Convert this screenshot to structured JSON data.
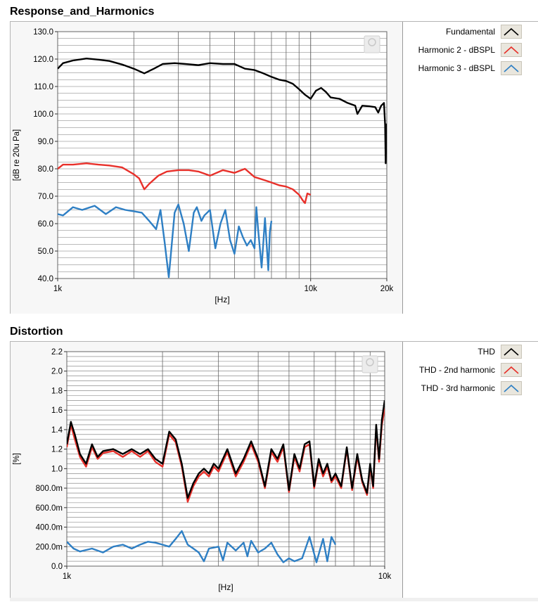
{
  "chart_data": [
    {
      "type": "line",
      "title": "Response_and_Harmonics",
      "xlabel": "[Hz]",
      "ylabel": "[dB re 20u Pa]",
      "xscale": "log",
      "xlim": [
        1000,
        20000
      ],
      "ylim": [
        40,
        130
      ],
      "xticks": [
        1000,
        10000,
        20000
      ],
      "xtick_labels": [
        "1k",
        "10k",
        "20k"
      ],
      "yticks": [
        130,
        120,
        110,
        100,
        90,
        80,
        70,
        60,
        50,
        40
      ],
      "ytick_labels": [
        "130.0",
        "120.0",
        "110.0",
        "100.0",
        "90.0",
        "80.0",
        "70.0",
        "60.0",
        "50.0",
        "40.0"
      ],
      "grid": true,
      "legend_position": "right",
      "series": [
        {
          "name": "Fundamental",
          "color": "#000000",
          "x": [
            1000,
            1050,
            1150,
            1300,
            1450,
            1600,
            1800,
            2000,
            2200,
            2400,
            2600,
            2900,
            3200,
            3600,
            4000,
            4500,
            5000,
            5500,
            6000,
            6500,
            7000,
            7500,
            8000,
            8500,
            9000,
            9500,
            10000,
            10500,
            11000,
            11500,
            12000,
            13000,
            14000,
            15000,
            15300,
            16000,
            17000,
            18000,
            18500,
            19000,
            19500,
            19700,
            19800,
            20000
          ],
          "y": [
            116.5,
            118.5,
            119.5,
            120.2,
            119.8,
            119.3,
            118.0,
            116.5,
            114.8,
            116.5,
            118.2,
            118.5,
            118.2,
            117.8,
            118.5,
            118.2,
            118.2,
            116.5,
            116.0,
            114.8,
            113.5,
            112.5,
            112.0,
            111.0,
            109.0,
            107.0,
            105.5,
            108.5,
            109.5,
            108.0,
            106.0,
            105.5,
            104.0,
            103.0,
            100.0,
            103.0,
            102.8,
            102.5,
            100.5,
            103.0,
            104.0,
            96.0,
            82.0,
            96.5
          ]
        },
        {
          "name": "Harmonic 2 - dBSPL",
          "color": "#e8302a",
          "x": [
            1000,
            1050,
            1150,
            1300,
            1450,
            1600,
            1800,
            2000,
            2100,
            2200,
            2300,
            2500,
            2700,
            3000,
            3300,
            3600,
            4000,
            4500,
            5000,
            5500,
            6000,
            6500,
            7000,
            7500,
            8000,
            8500,
            9000,
            9300,
            9500,
            9700,
            10000
          ],
          "y": [
            80.0,
            81.5,
            81.5,
            82.0,
            81.5,
            81.2,
            80.5,
            78.0,
            76.5,
            72.5,
            74.5,
            77.5,
            79.0,
            79.5,
            79.5,
            79.0,
            77.5,
            79.5,
            78.5,
            80.0,
            77.0,
            76.0,
            75.0,
            74.0,
            73.5,
            72.5,
            70.5,
            68.5,
            67.5,
            71.0,
            70.5
          ]
        },
        {
          "name": "Harmonic 3 - dBSPL",
          "color": "#2e7fc4",
          "x": [
            1000,
            1050,
            1150,
            1250,
            1400,
            1550,
            1700,
            1850,
            2000,
            2150,
            2300,
            2450,
            2550,
            2650,
            2750,
            2900,
            3000,
            3150,
            3300,
            3450,
            3550,
            3700,
            3800,
            4000,
            4200,
            4400,
            4600,
            4800,
            5000,
            5200,
            5400,
            5600,
            5800,
            6000,
            6100,
            6200,
            6400,
            6600,
            6800,
            6900,
            7000
          ],
          "y": [
            63.5,
            63.0,
            66.0,
            65.0,
            66.5,
            63.5,
            66.0,
            65.0,
            64.5,
            64.0,
            61.0,
            58.0,
            65.0,
            53.0,
            40.5,
            64.0,
            67.0,
            60.0,
            50.0,
            64.0,
            66.0,
            61.0,
            63.0,
            65.0,
            51.0,
            60.0,
            65.0,
            54.0,
            49.0,
            59.0,
            55.0,
            52.0,
            54.0,
            51.0,
            66.0,
            58.0,
            44.0,
            62.0,
            43.0,
            57.0,
            61.0
          ]
        }
      ]
    },
    {
      "type": "line",
      "title": "Distortion",
      "xlabel": "[Hz]",
      "ylabel": "[%]",
      "xscale": "log",
      "xlim": [
        1000,
        10000
      ],
      "ylim": [
        0,
        2.2
      ],
      "xticks": [
        1000,
        10000
      ],
      "xtick_labels": [
        "1k",
        "10k"
      ],
      "yticks": [
        2.2,
        2.0,
        1.8,
        1.6,
        1.4,
        1.2,
        1.0,
        0.8,
        0.6,
        0.4,
        0.2,
        0.0
      ],
      "ytick_labels": [
        "2.2",
        "2.0",
        "1.8",
        "1.6",
        "1.4",
        "1.2",
        "1.0",
        "800.0m",
        "600.0m",
        "400.0m",
        "200.0m",
        "0.0"
      ],
      "grid": true,
      "legend_position": "right",
      "series": [
        {
          "name": "THD",
          "color": "#000000",
          "x": [
            1000,
            1030,
            1060,
            1100,
            1150,
            1200,
            1250,
            1300,
            1400,
            1500,
            1600,
            1700,
            1800,
            1900,
            2000,
            2100,
            2200,
            2300,
            2400,
            2500,
            2600,
            2700,
            2800,
            2900,
            3000,
            3200,
            3400,
            3600,
            3800,
            4000,
            4200,
            4400,
            4600,
            4800,
            5000,
            5200,
            5400,
            5600,
            5800,
            6000,
            6200,
            6400,
            6600,
            6800,
            7000,
            7300,
            7600,
            7900,
            8200,
            8500,
            8800,
            9000,
            9200,
            9400,
            9600,
            9800,
            10000
          ],
          "y": [
            1.25,
            1.48,
            1.35,
            1.15,
            1.05,
            1.25,
            1.12,
            1.18,
            1.2,
            1.15,
            1.2,
            1.15,
            1.2,
            1.1,
            1.05,
            1.38,
            1.3,
            1.05,
            0.7,
            0.85,
            0.95,
            1.0,
            0.95,
            1.05,
            1.0,
            1.2,
            0.95,
            1.1,
            1.28,
            1.1,
            0.82,
            1.2,
            1.1,
            1.25,
            0.78,
            1.15,
            1.0,
            1.25,
            1.28,
            0.82,
            1.1,
            0.95,
            1.05,
            0.88,
            0.95,
            0.82,
            1.22,
            0.8,
            1.15,
            0.88,
            0.75,
            1.05,
            0.82,
            1.45,
            1.1,
            1.5,
            1.7
          ]
        },
        {
          "name": "THD - 2nd harmonic",
          "color": "#e8302a",
          "x": [
            1000,
            1030,
            1060,
            1100,
            1150,
            1200,
            1250,
            1300,
            1400,
            1500,
            1600,
            1700,
            1800,
            1900,
            2000,
            2100,
            2200,
            2300,
            2400,
            2500,
            2600,
            2700,
            2800,
            2900,
            3000,
            3200,
            3400,
            3600,
            3800,
            4000,
            4200,
            4400,
            4600,
            4800,
            5000,
            5200,
            5400,
            5600,
            5800,
            6000,
            6200,
            6400,
            6600,
            6800,
            7000,
            7300,
            7600,
            7900,
            8200,
            8500,
            8800,
            9000,
            9200,
            9400,
            9600,
            9800,
            10000
          ],
          "y": [
            1.22,
            1.45,
            1.3,
            1.12,
            1.02,
            1.22,
            1.1,
            1.16,
            1.18,
            1.12,
            1.18,
            1.12,
            1.18,
            1.07,
            1.02,
            1.35,
            1.27,
            1.02,
            0.66,
            0.82,
            0.92,
            0.97,
            0.92,
            1.02,
            0.97,
            1.17,
            0.92,
            1.07,
            1.25,
            1.07,
            0.8,
            1.17,
            1.07,
            1.22,
            0.76,
            1.12,
            0.97,
            1.22,
            1.25,
            0.8,
            1.07,
            0.92,
            1.02,
            0.86,
            0.92,
            0.8,
            1.2,
            0.78,
            1.12,
            0.86,
            0.73,
            1.02,
            0.8,
            1.42,
            1.07,
            1.45,
            1.62
          ]
        },
        {
          "name": "THD - 3rd harmonic",
          "color": "#2e7fc4",
          "x": [
            1000,
            1050,
            1100,
            1200,
            1300,
            1400,
            1500,
            1600,
            1700,
            1800,
            1900,
            2000,
            2100,
            2200,
            2300,
            2400,
            2500,
            2600,
            2700,
            2800,
            3000,
            3100,
            3200,
            3400,
            3600,
            3700,
            3800,
            4000,
            4200,
            4400,
            4600,
            4800,
            5000,
            5200,
            5500,
            5800,
            6100,
            6400,
            6600,
            6800,
            7000
          ],
          "y": [
            0.25,
            0.18,
            0.15,
            0.18,
            0.14,
            0.2,
            0.22,
            0.18,
            0.22,
            0.25,
            0.24,
            0.22,
            0.2,
            0.28,
            0.36,
            0.22,
            0.18,
            0.14,
            0.05,
            0.18,
            0.2,
            0.06,
            0.24,
            0.16,
            0.24,
            0.1,
            0.26,
            0.14,
            0.18,
            0.24,
            0.12,
            0.04,
            0.08,
            0.05,
            0.08,
            0.3,
            0.04,
            0.28,
            0.05,
            0.3,
            0.22
          ]
        }
      ]
    }
  ]
}
